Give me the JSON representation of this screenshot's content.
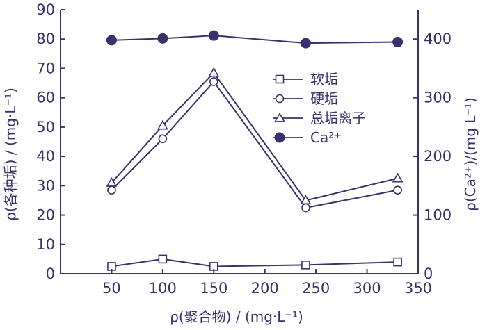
{
  "chart_data": {
    "type": "line",
    "xlabel": "ρ(聚合物) / (mg·L⁻¹)",
    "ylabel": "ρ(各种垢) / (mg·L⁻¹)",
    "y2label": "ρ(Ca²⁺)/(mg L⁻¹)",
    "xlim": [
      0,
      350
    ],
    "ylim": [
      0,
      90
    ],
    "y2lim": [
      0,
      450
    ],
    "x_ticks": [
      50,
      100,
      150,
      200,
      250,
      300,
      350
    ],
    "y_ticks": [
      0,
      10,
      20,
      30,
      40,
      50,
      60,
      70,
      80,
      90
    ],
    "y2_ticks": [
      0,
      100,
      200,
      300,
      400
    ],
    "x": [
      50,
      100,
      150,
      240,
      330
    ],
    "series": [
      {
        "name": "软垢",
        "marker": "square",
        "axis": "left",
        "values": [
          2.5,
          5.0,
          2.5,
          3.0,
          4.0
        ]
      },
      {
        "name": "硬垢",
        "marker": "circle",
        "axis": "left",
        "values": [
          28.5,
          46.0,
          65.5,
          22.5,
          28.5
        ]
      },
      {
        "name": "总垢离子",
        "marker": "triangle",
        "axis": "left",
        "values": [
          31.0,
          50.5,
          68.5,
          25.0,
          32.5
        ]
      },
      {
        "name": "Ca²⁺",
        "marker": "filled-circle",
        "axis": "right",
        "values": [
          398,
          401,
          406,
          393,
          395
        ]
      }
    ],
    "legend_position": "upper-right",
    "grid": false,
    "color": "#3d2f6e"
  }
}
